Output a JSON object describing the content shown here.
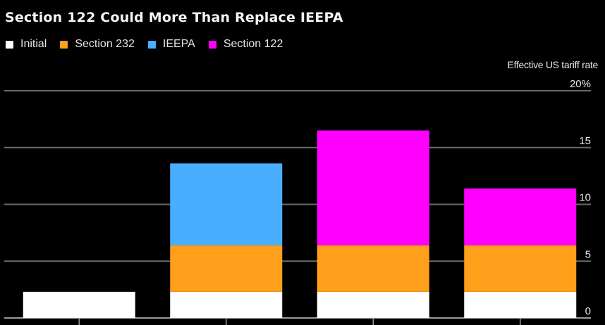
{
  "chart_data": {
    "type": "bar",
    "stacked": true,
    "title": "Section 122 Could More Than Replace IEEPA",
    "ylabel": "Effective US tariff rate",
    "ylim": [
      0,
      20
    ],
    "yticks": [
      0,
      5,
      10,
      15,
      20
    ],
    "ytick_labels": [
      "0",
      "5",
      "10",
      "15",
      "20%"
    ],
    "y_axis_side": "right",
    "grid": true,
    "legend_position": "top-left",
    "categories": [
      "",
      "",
      "",
      ""
    ],
    "series": [
      {
        "name": "Initial",
        "color": "#ffffff",
        "values": [
          2.3,
          2.3,
          2.3,
          2.3
        ]
      },
      {
        "name": "Section 232",
        "color": "#ff9f1a",
        "values": [
          0,
          4.1,
          4.1,
          4.1
        ]
      },
      {
        "name": "IEEPA",
        "color": "#4aaeff",
        "values": [
          0,
          7.2,
          0,
          0
        ]
      },
      {
        "name": "Section 122",
        "color": "#ff00ff",
        "values": [
          0,
          0,
          10.1,
          5.0
        ]
      }
    ]
  }
}
